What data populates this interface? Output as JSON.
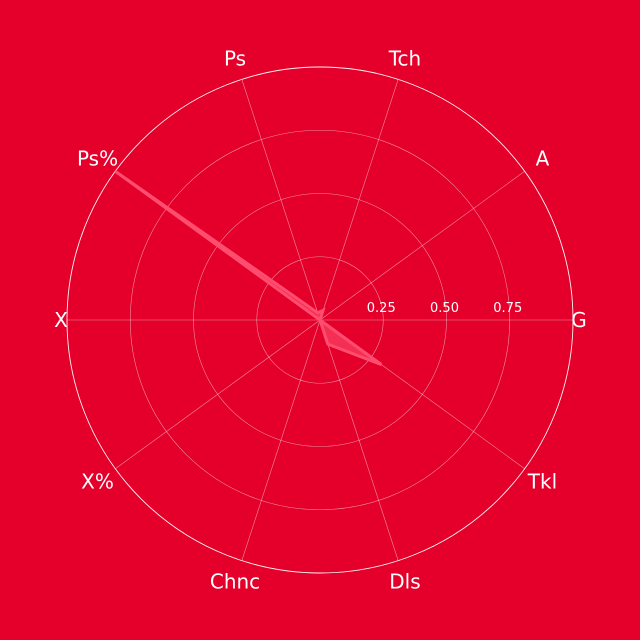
{
  "colors": {
    "background": "#E4002B",
    "grid": "#ffffff",
    "series_fill": "#F8365C",
    "series_edge": "#FF4D70",
    "text": "#ffffff"
  },
  "chart_data": {
    "type": "radar",
    "categories": [
      "G",
      "A",
      "Tch",
      "Ps",
      "Ps%",
      "X",
      "X%",
      "Chnc",
      "Dls",
      "Tkl"
    ],
    "series": [
      {
        "values": [
          0.0,
          0.0,
          0.04,
          0.03,
          1.0,
          0.0,
          0.0,
          0.0,
          0.1,
          0.3
        ]
      }
    ],
    "rlim": [
      0,
      1
    ],
    "ring_values": [
      0.25,
      0.5,
      0.75,
      1.0
    ],
    "ring_labels": [
      "0.25",
      "0.50",
      "0.75"
    ],
    "grid": true,
    "legend": false
  }
}
